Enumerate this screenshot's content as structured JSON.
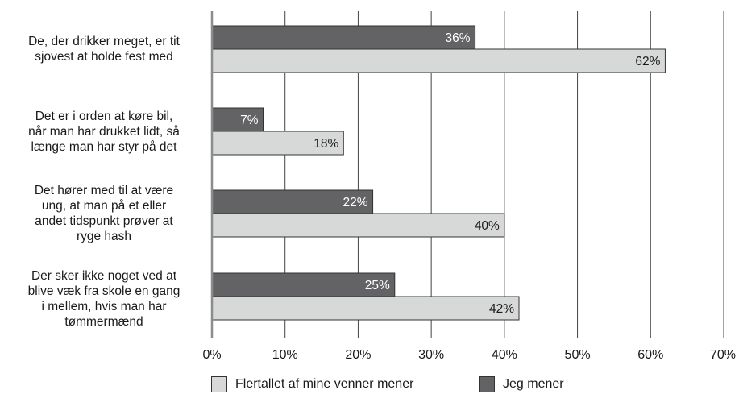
{
  "chart_data": {
    "type": "bar",
    "orientation": "horizontal",
    "categories": [
      "De, der drikker meget, er tit\nsjovest at holde fest med",
      "Det er i orden at køre bil,\nnår man har drukket lidt, så\nlænge man har styr på det",
      "Det hører med til at være\nung, at man på et eller\nandet tidspunkt prøver at\nryge hash",
      "Der sker ikke noget ved at\nblive væk fra skole en gang\ni mellem, hvis man har\ntømmermænd"
    ],
    "series": [
      {
        "name": "Jeg mener",
        "values": [
          36,
          7,
          22,
          25
        ],
        "labels": [
          "36%",
          "7%",
          "22%",
          "25%"
        ],
        "color": "#636366",
        "label_color": "#ffffff"
      },
      {
        "name": "Flertallet af mine venner mener",
        "values": [
          62,
          18,
          40,
          42
        ],
        "labels": [
          "62%",
          "18%",
          "40%",
          "42%"
        ],
        "color": "#d7d8d8",
        "label_color": "#1a1a1a"
      }
    ],
    "xlim": [
      0,
      70
    ],
    "ticks": [
      "0%",
      "10%",
      "20%",
      "30%",
      "40%",
      "50%",
      "60%",
      "70%"
    ],
    "grid": true,
    "legend_position": "bottom",
    "legend_order": [
      "Flertallet af mine venner mener",
      "Jeg mener"
    ]
  }
}
